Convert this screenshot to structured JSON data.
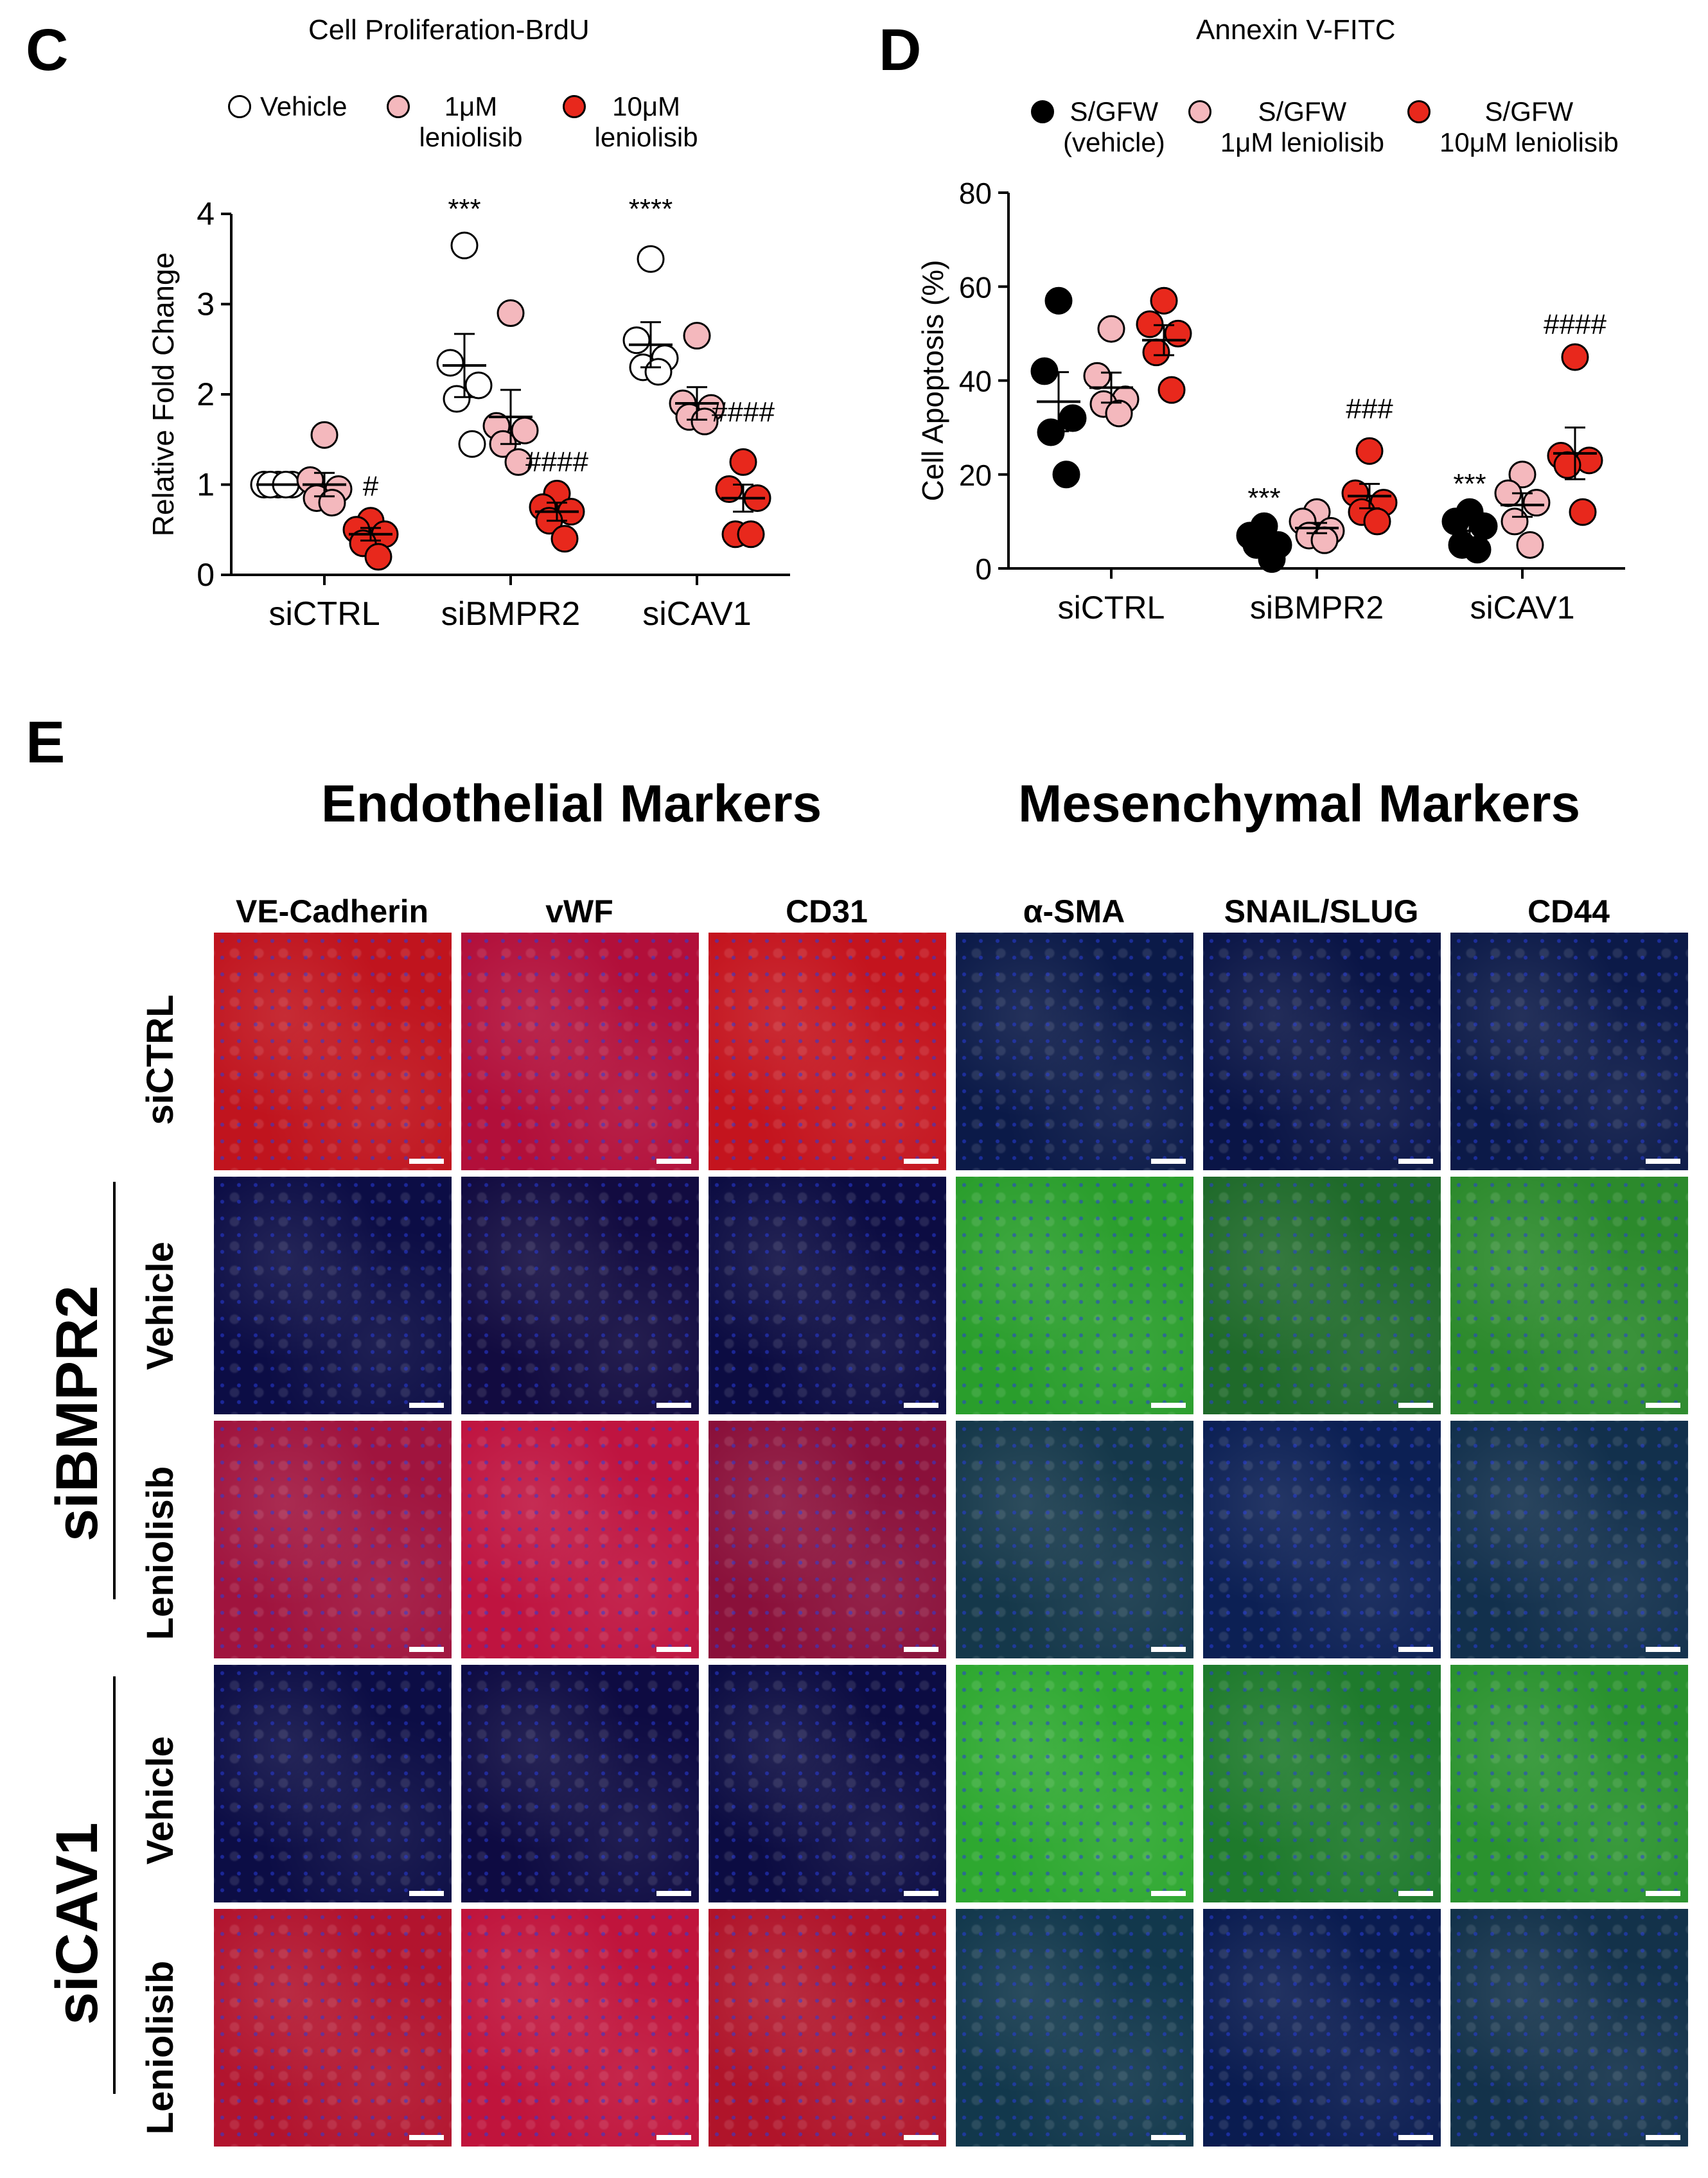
{
  "panels": {
    "C": {
      "letter": "C",
      "title": "Cell Proliferation-BrdU"
    },
    "D": {
      "letter": "D",
      "title": "Annexin V-FITC"
    },
    "E": {
      "letter": "E"
    }
  },
  "legend_c": [
    {
      "label": "Vehicle",
      "color": "#ffffff"
    },
    {
      "label": "1μM\nleniolisib",
      "color": "#f4b8bd"
    },
    {
      "label": "10μM\nleniolisib",
      "color": "#e8281c"
    }
  ],
  "legend_d": [
    {
      "label": "S/GFW\n(vehicle)",
      "color": "#000000"
    },
    {
      "label": "S/GFW\n1μM leniolisib",
      "color": "#f4b8bd"
    },
    {
      "label": "S/GFW\n10μM leniolisib",
      "color": "#e8281c"
    }
  ],
  "chart_data": [
    {
      "type": "scatter",
      "title": "Cell Proliferation-BrdU",
      "ylabel": "Relative Fold Change",
      "xlabel": "",
      "ylim": [
        0,
        4
      ],
      "yticks": [
        "0",
        "1",
        "2",
        "3",
        "4"
      ],
      "categories": [
        "siCTRL",
        "siBMPR2",
        "siCAV1"
      ],
      "legend_position": "top",
      "series": [
        {
          "name": "Vehicle",
          "fill": "#ffffff",
          "points": [
            [
              1.0,
              1.0,
              1.0,
              1.0,
              1.0
            ],
            [
              3.65,
              2.35,
              2.1,
              1.95,
              1.45
            ],
            [
              3.5,
              2.6,
              2.4,
              2.3,
              2.25
            ]
          ],
          "mean": [
            1.0,
            2.32,
            2.55
          ],
          "sem": [
            0.0,
            0.35,
            0.25
          ]
        },
        {
          "name": "1μM leniolisib",
          "fill": "#f4b8bd",
          "points": [
            [
              1.55,
              1.05,
              0.95,
              0.85,
              0.8
            ],
            [
              2.9,
              1.65,
              1.6,
              1.45,
              1.25
            ],
            [
              2.65,
              1.9,
              1.85,
              1.75,
              1.7
            ]
          ],
          "mean": [
            1.0,
            1.75,
            1.9
          ],
          "sem": [
            0.13,
            0.3,
            0.18
          ]
        },
        {
          "name": "10μM leniolisib",
          "fill": "#e8281c",
          "points": [
            [
              0.6,
              0.5,
              0.45,
              0.35,
              0.2
            ],
            [
              0.9,
              0.75,
              0.7,
              0.6,
              0.4
            ],
            [
              1.25,
              0.95,
              0.85,
              0.45,
              0.45
            ]
          ],
          "mean": [
            0.45,
            0.7,
            0.85
          ],
          "sem": [
            0.07,
            0.1,
            0.15
          ]
        }
      ],
      "annotations": [
        {
          "text": "***",
          "group": 1,
          "series": 0,
          "y": 3.95
        },
        {
          "text": "****",
          "group": 2,
          "series": 0,
          "y": 3.95
        },
        {
          "text": "#",
          "group": 0,
          "series": 2,
          "y": 0.88
        },
        {
          "text": "####",
          "group": 1,
          "series": 2,
          "y": 1.15
        },
        {
          "text": "####",
          "group": 2,
          "series": 2,
          "y": 1.7
        }
      ]
    },
    {
      "type": "scatter",
      "title": "Annexin V-FITC",
      "ylabel": "Cell Apoptosis (%)",
      "xlabel": "",
      "ylim": [
        0,
        80
      ],
      "yticks": [
        "0",
        "20",
        "40",
        "60",
        "80"
      ],
      "categories": [
        "siCTRL",
        "siBMPR2",
        "siCAV1"
      ],
      "legend_position": "top",
      "series": [
        {
          "name": "S/GFW (vehicle)",
          "fill": "#000000",
          "points": [
            [
              57,
              42,
              32,
              29,
              20
            ],
            [
              9,
              7,
              5,
              5,
              2
            ],
            [
              12,
              10,
              9,
              5,
              4
            ]
          ],
          "mean": [
            35.5,
            5.6,
            8.0
          ],
          "sem": [
            6.3,
            1.4,
            1.6
          ]
        },
        {
          "name": "S/GFW 1μM leniolisib",
          "fill": "#f4b8bd",
          "points": [
            [
              51,
              41,
              36,
              35,
              33
            ],
            [
              12,
              10,
              8,
              7,
              6
            ],
            [
              20,
              16,
              14,
              10,
              5
            ]
          ],
          "mean": [
            38.5,
            8.6,
            13.5
          ],
          "sem": [
            3.2,
            1.1,
            2.5
          ]
        },
        {
          "name": "S/GFW 10μM leniolisib",
          "fill": "#e8281c",
          "points": [
            [
              57,
              52,
              50,
              46,
              38
            ],
            [
              25,
              16,
              14,
              12,
              10
            ],
            [
              45,
              24,
              23,
              22,
              12
            ]
          ],
          "mean": [
            48.6,
            15.4,
            24.5
          ],
          "sem": [
            3.2,
            2.6,
            5.5
          ]
        }
      ],
      "annotations": [
        {
          "text": "***",
          "group": 1,
          "series": 0,
          "y": 13
        },
        {
          "text": "***",
          "group": 2,
          "series": 0,
          "y": 16
        },
        {
          "text": "###",
          "group": 1,
          "series": 2,
          "y": 32
        },
        {
          "text": "####",
          "group": 2,
          "series": 2,
          "y": 50
        }
      ]
    }
  ],
  "panel_e": {
    "headings": {
      "endothelial": "Endothelial Markers",
      "mesenchymal": "Mesenchymal Markers"
    },
    "columns": [
      "VE-Cadherin",
      "vWF",
      "CD31",
      "α-SMA",
      "SNAIL/SLUG",
      "CD44"
    ],
    "groups": [
      "siBMPR2",
      "siCAV1"
    ],
    "rows": [
      "siCTRL",
      "Vehicle",
      "Leniolisib",
      "Vehicle",
      "Leniolisib"
    ],
    "tile_colors": [
      [
        "#c0141e",
        "#b20f3a",
        "#c4141e",
        "#0b1a48",
        "#0a1546",
        "#0c1a48"
      ],
      [
        "#0c0d45",
        "#120b40",
        "#0c0c42",
        "#2a9e2c",
        "#1f6a2a",
        "#2c8a2c"
      ],
      [
        "#a0143e",
        "#bf1440",
        "#8a103a",
        "#15384a",
        "#0c2054",
        "#12304c"
      ],
      [
        "#0c0d45",
        "#0e0b42",
        "#0c0c42",
        "#2ea830",
        "#1e7a2c",
        "#2a922e"
      ],
      [
        "#b2142e",
        "#c0143c",
        "#b0142a",
        "#12384c",
        "#0a1c50",
        "#13324a"
      ]
    ]
  }
}
